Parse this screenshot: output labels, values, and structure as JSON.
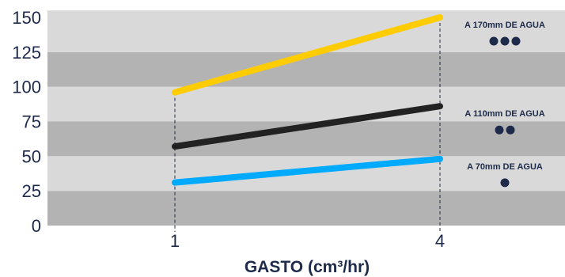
{
  "chart_data": {
    "type": "line",
    "x": [
      1,
      4
    ],
    "xticks": [
      "1",
      "4"
    ],
    "xlabel": "GASTO (cm³/hr)",
    "ylabel": "",
    "yticks": [
      0,
      25,
      50,
      75,
      100,
      125,
      150
    ],
    "ylim": [
      0,
      155
    ],
    "grid": "horizontal alternating bands",
    "series": [
      {
        "values": [
          96,
          150
        ],
        "color": "#ffcc00",
        "label": "A 170mm DE AGUA",
        "dots": 3
      },
      {
        "values": [
          57,
          86
        ],
        "color": "#222222",
        "label": "A 110mm DE AGUA",
        "dots": 2
      },
      {
        "values": [
          31,
          48
        ],
        "color": "#00aaff",
        "label": "A 70mm DE AGUA",
        "dots": 1
      }
    ]
  },
  "colors": {
    "band_light": "#d9d9d9",
    "band_dark": "#b3b3b3",
    "text": "#1e2a4a",
    "dot": "#1e2a4a"
  }
}
